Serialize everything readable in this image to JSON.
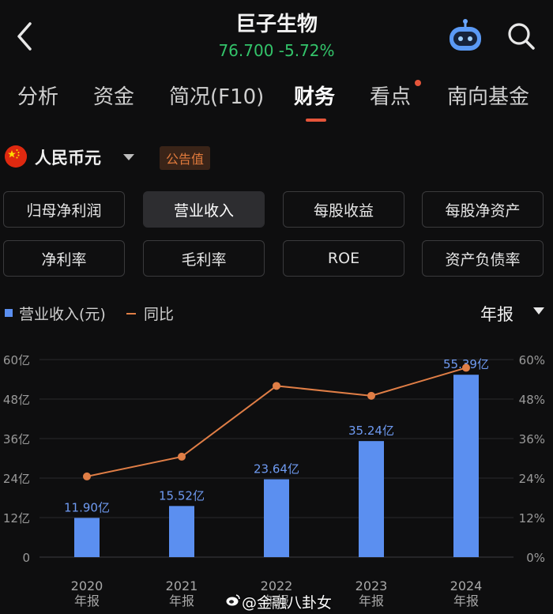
{
  "header": {
    "title": "巨子生物",
    "price": "76.700",
    "change": "-5.72%",
    "back_icon": "chevron-left-icon",
    "robot_icon": "robot-assistant-icon",
    "search_icon": "search-icon"
  },
  "tabs": [
    {
      "label": "分析"
    },
    {
      "label": "资金"
    },
    {
      "label": "简况(F10)"
    },
    {
      "label": "财务",
      "active": true
    },
    {
      "label": "看点",
      "dot": true
    },
    {
      "label": "南向基金"
    }
  ],
  "currency": {
    "label": "人民币元",
    "flag_icon": "china-flag-icon",
    "badge": "公告值"
  },
  "metrics": [
    {
      "label": "归母净利润"
    },
    {
      "label": "营业收入",
      "active": true
    },
    {
      "label": "每股收益"
    },
    {
      "label": "每股净资产"
    },
    {
      "label": "净利率"
    },
    {
      "label": "毛利率"
    },
    {
      "label": "ROE"
    },
    {
      "label": "资产负债率"
    }
  ],
  "legend": {
    "bar_label": "营业收入(元)",
    "line_label": "同比",
    "period": "年报"
  },
  "chart_data": {
    "type": "bar",
    "categories": [
      "2020\n年报",
      "2021\n年报",
      "2022\n年报",
      "2023\n年报",
      "2024\n年报"
    ],
    "category_lines": [
      [
        "2020",
        "年报"
      ],
      [
        "2021",
        "年报"
      ],
      [
        "2022",
        "年报"
      ],
      [
        "2023",
        "年报"
      ],
      [
        "2024",
        "年报"
      ]
    ],
    "series": [
      {
        "name": "营业收入(元)",
        "type": "bar",
        "values": [
          11.9,
          15.52,
          23.64,
          35.24,
          55.39
        ],
        "unit": "亿",
        "color": "#5b8ff0",
        "data_labels": [
          "11.90亿",
          "15.52亿",
          "23.64亿",
          "35.24亿",
          "55.39亿"
        ]
      },
      {
        "name": "同比",
        "type": "line",
        "axis": "right",
        "values": [
          24.5,
          30.5,
          52.0,
          49.0,
          57.5
        ],
        "unit": "%",
        "color": "#e07e46"
      }
    ],
    "y_left": {
      "ticks": [
        "60亿",
        "48亿",
        "36亿",
        "24亿",
        "12亿",
        "0"
      ],
      "ylim": [
        0,
        60
      ]
    },
    "y_right": {
      "ticks": [
        "60%",
        "48%",
        "36%",
        "24%",
        "12%",
        "0%"
      ],
      "ylim": [
        0,
        60
      ]
    },
    "grid": true
  },
  "watermark": {
    "text": "@金融八卦女",
    "icon": "weibo-icon"
  }
}
